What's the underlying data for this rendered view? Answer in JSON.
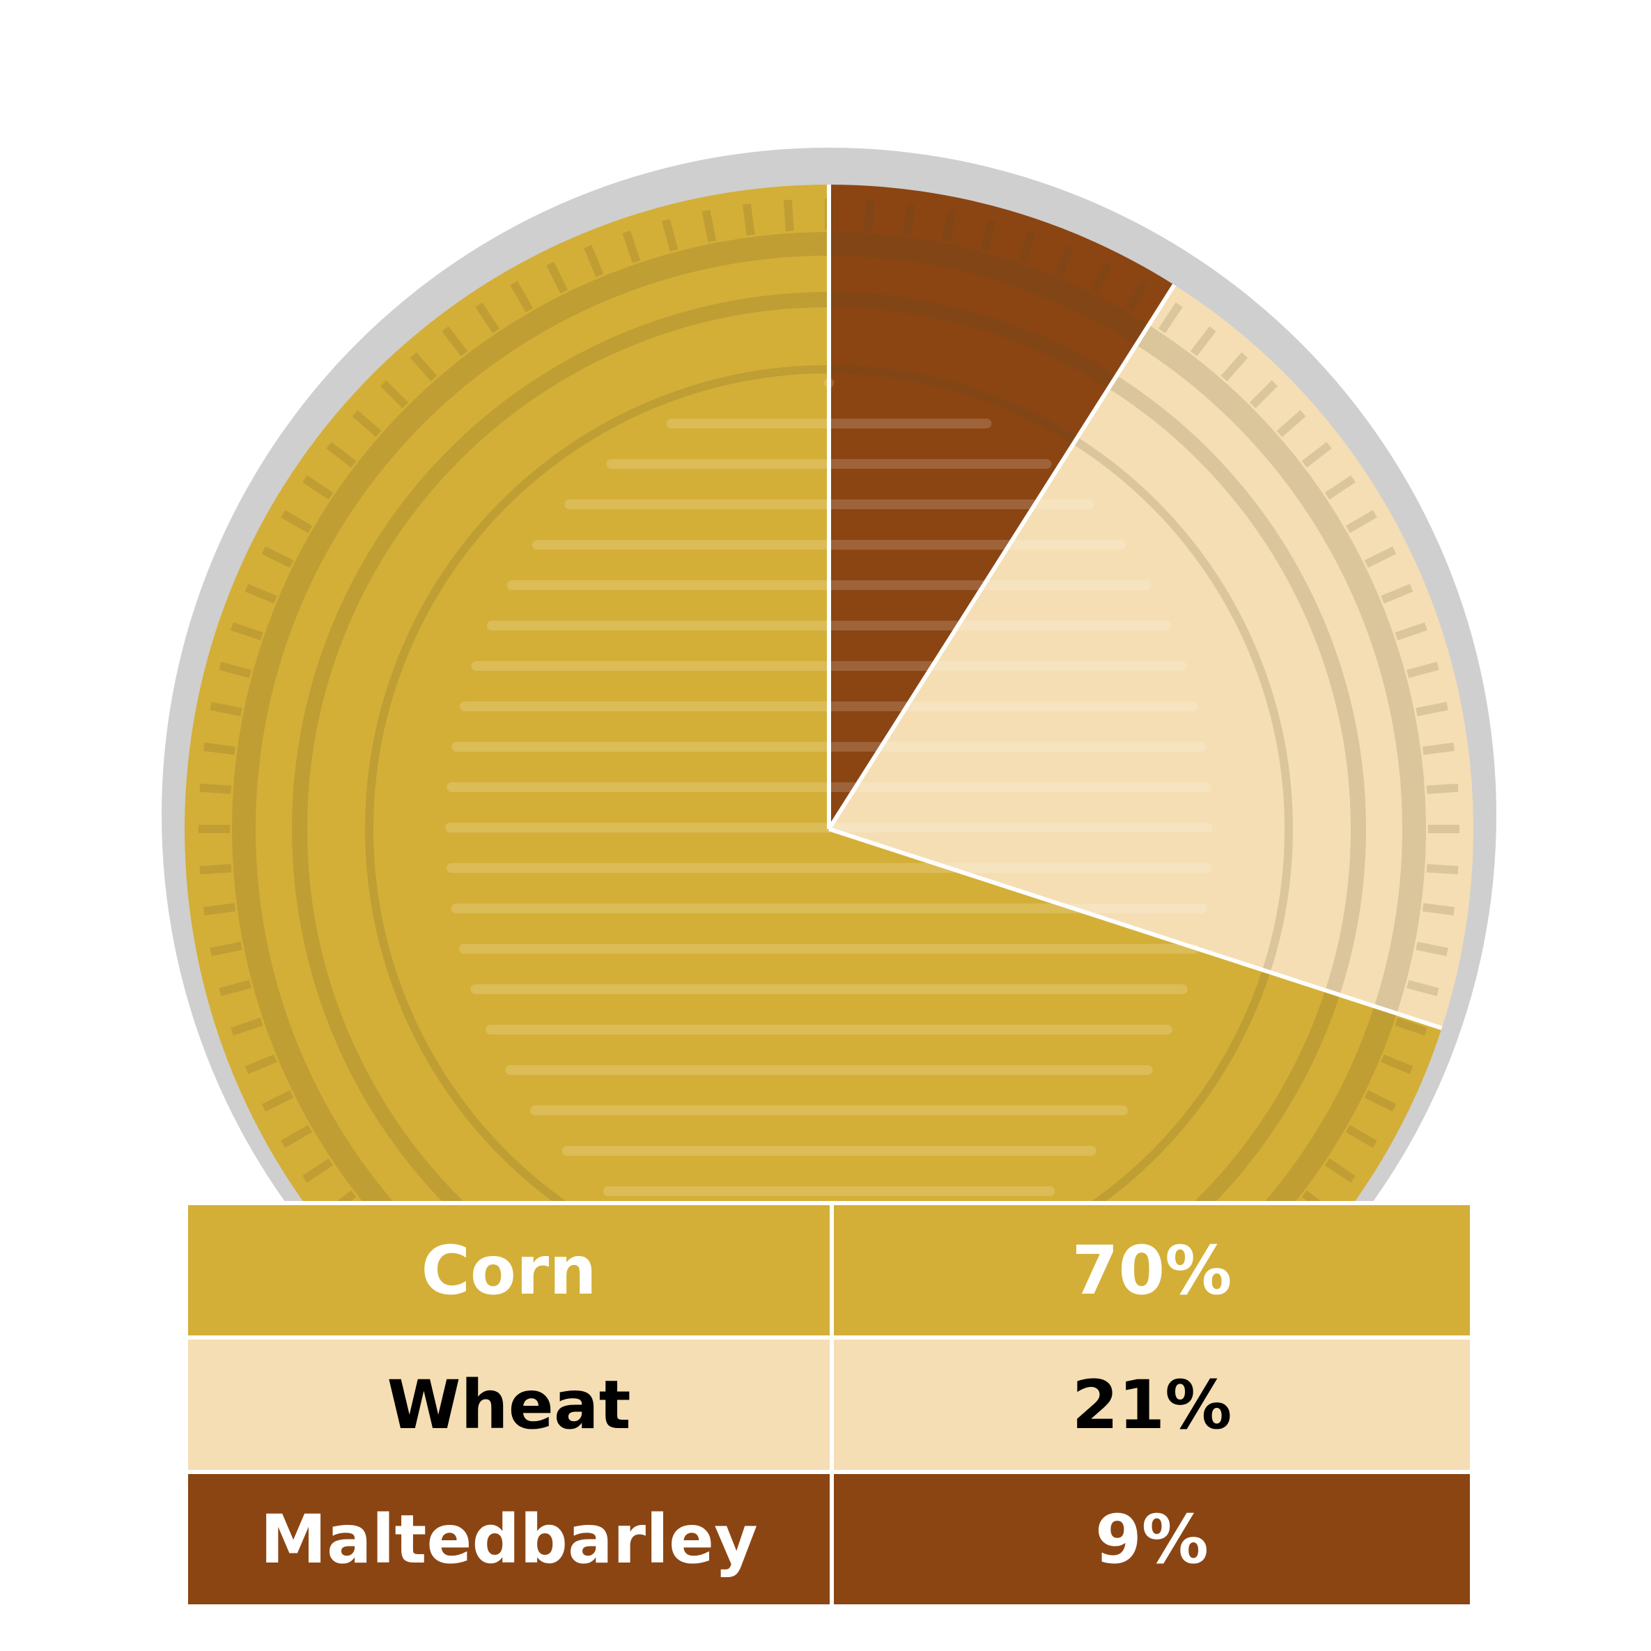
{
  "chart_data": {
    "type": "pie",
    "title": "",
    "start": "top",
    "direction": "clockwise",
    "slices": [
      {
        "label": "Maltedbarley",
        "value": 9,
        "display": "9%",
        "color": "#8B4513",
        "text_color": "#ffffff"
      },
      {
        "label": "Wheat",
        "value": 21,
        "display": "21%",
        "color": "#F5DEB3",
        "text_color": "#000000"
      },
      {
        "label": "Corn",
        "value": 70,
        "display": "70%",
        "color": "#D4AF37",
        "text_color": "#ffffff"
      }
    ]
  },
  "legend": {
    "rows": [
      {
        "label": "Corn",
        "value": "70%",
        "color": "#D4AF37",
        "text_color": "#ffffff"
      },
      {
        "label": "Wheat",
        "value": "21%",
        "color": "#F5DEB3",
        "text_color": "#000000"
      },
      {
        "label": "Maltedbarley",
        "value": "9%",
        "color": "#8B4513",
        "text_color": "#ffffff"
      }
    ]
  },
  "colors": {
    "rim": "#cfcfcf",
    "separator": "#ffffff"
  }
}
